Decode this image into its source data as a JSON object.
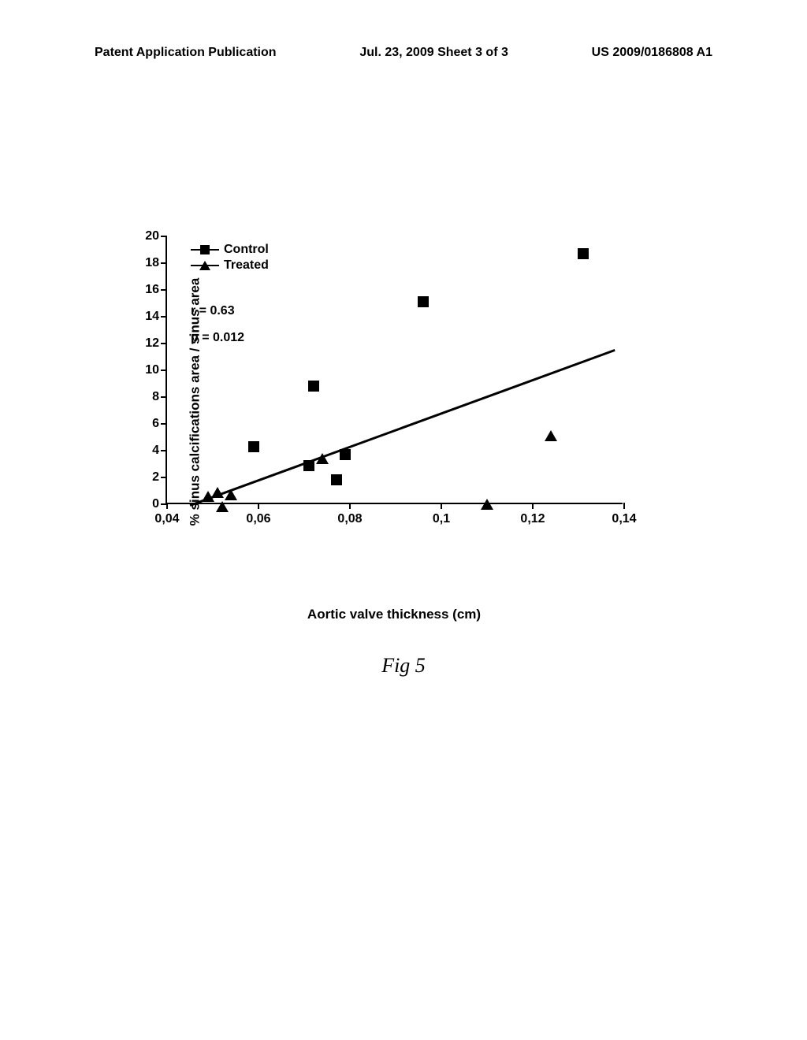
{
  "header": {
    "left": "Patent Application Publication",
    "center": "Jul. 23, 2009  Sheet 3 of 3",
    "right": "US 2009/0186808 A1"
  },
  "chart": {
    "type": "scatter",
    "y_label": "% sinus calcifications area / sinus area",
    "x_label": "Aortic valve thickness (cm)",
    "xlim": [
      0.04,
      0.14
    ],
    "ylim": [
      0,
      20
    ],
    "x_ticks": [
      0.04,
      0.06,
      0.08,
      0.1,
      0.12,
      0.14
    ],
    "x_tick_labels": [
      "0,04",
      "0,06",
      "0,08",
      "0,1",
      "0,12",
      "0,14"
    ],
    "y_ticks": [
      0,
      2,
      4,
      6,
      8,
      10,
      12,
      14,
      16,
      18,
      20
    ],
    "y_tick_labels": [
      "0",
      "2",
      "4",
      "6",
      "8",
      "10",
      "12",
      "14",
      "16",
      "18",
      "20"
    ],
    "legend": {
      "control": "Control",
      "treated": "Treated"
    },
    "stats": {
      "r": "r = 0.63",
      "p": "p = 0.012"
    },
    "control_points": [
      {
        "x": 0.059,
        "y": 4.3
      },
      {
        "x": 0.071,
        "y": 2.9
      },
      {
        "x": 0.072,
        "y": 8.8
      },
      {
        "x": 0.077,
        "y": 1.8
      },
      {
        "x": 0.079,
        "y": 3.7
      },
      {
        "x": 0.096,
        "y": 15.1
      },
      {
        "x": 0.131,
        "y": 18.7
      }
    ],
    "treated_points": [
      {
        "x": 0.049,
        "y": 0.6
      },
      {
        "x": 0.051,
        "y": 0.9
      },
      {
        "x": 0.052,
        "y": -0.2
      },
      {
        "x": 0.054,
        "y": 0.7
      },
      {
        "x": 0.074,
        "y": 3.4
      },
      {
        "x": 0.11,
        "y": 0.0
      },
      {
        "x": 0.124,
        "y": 5.1
      }
    ],
    "trend_line": {
      "x1": 0.045,
      "y1": 0.0,
      "x2": 0.138,
      "y2": 11.6
    },
    "marker_color": "#000000",
    "line_color": "#000000",
    "background_color": "#ffffff"
  },
  "caption": "Fig 5"
}
